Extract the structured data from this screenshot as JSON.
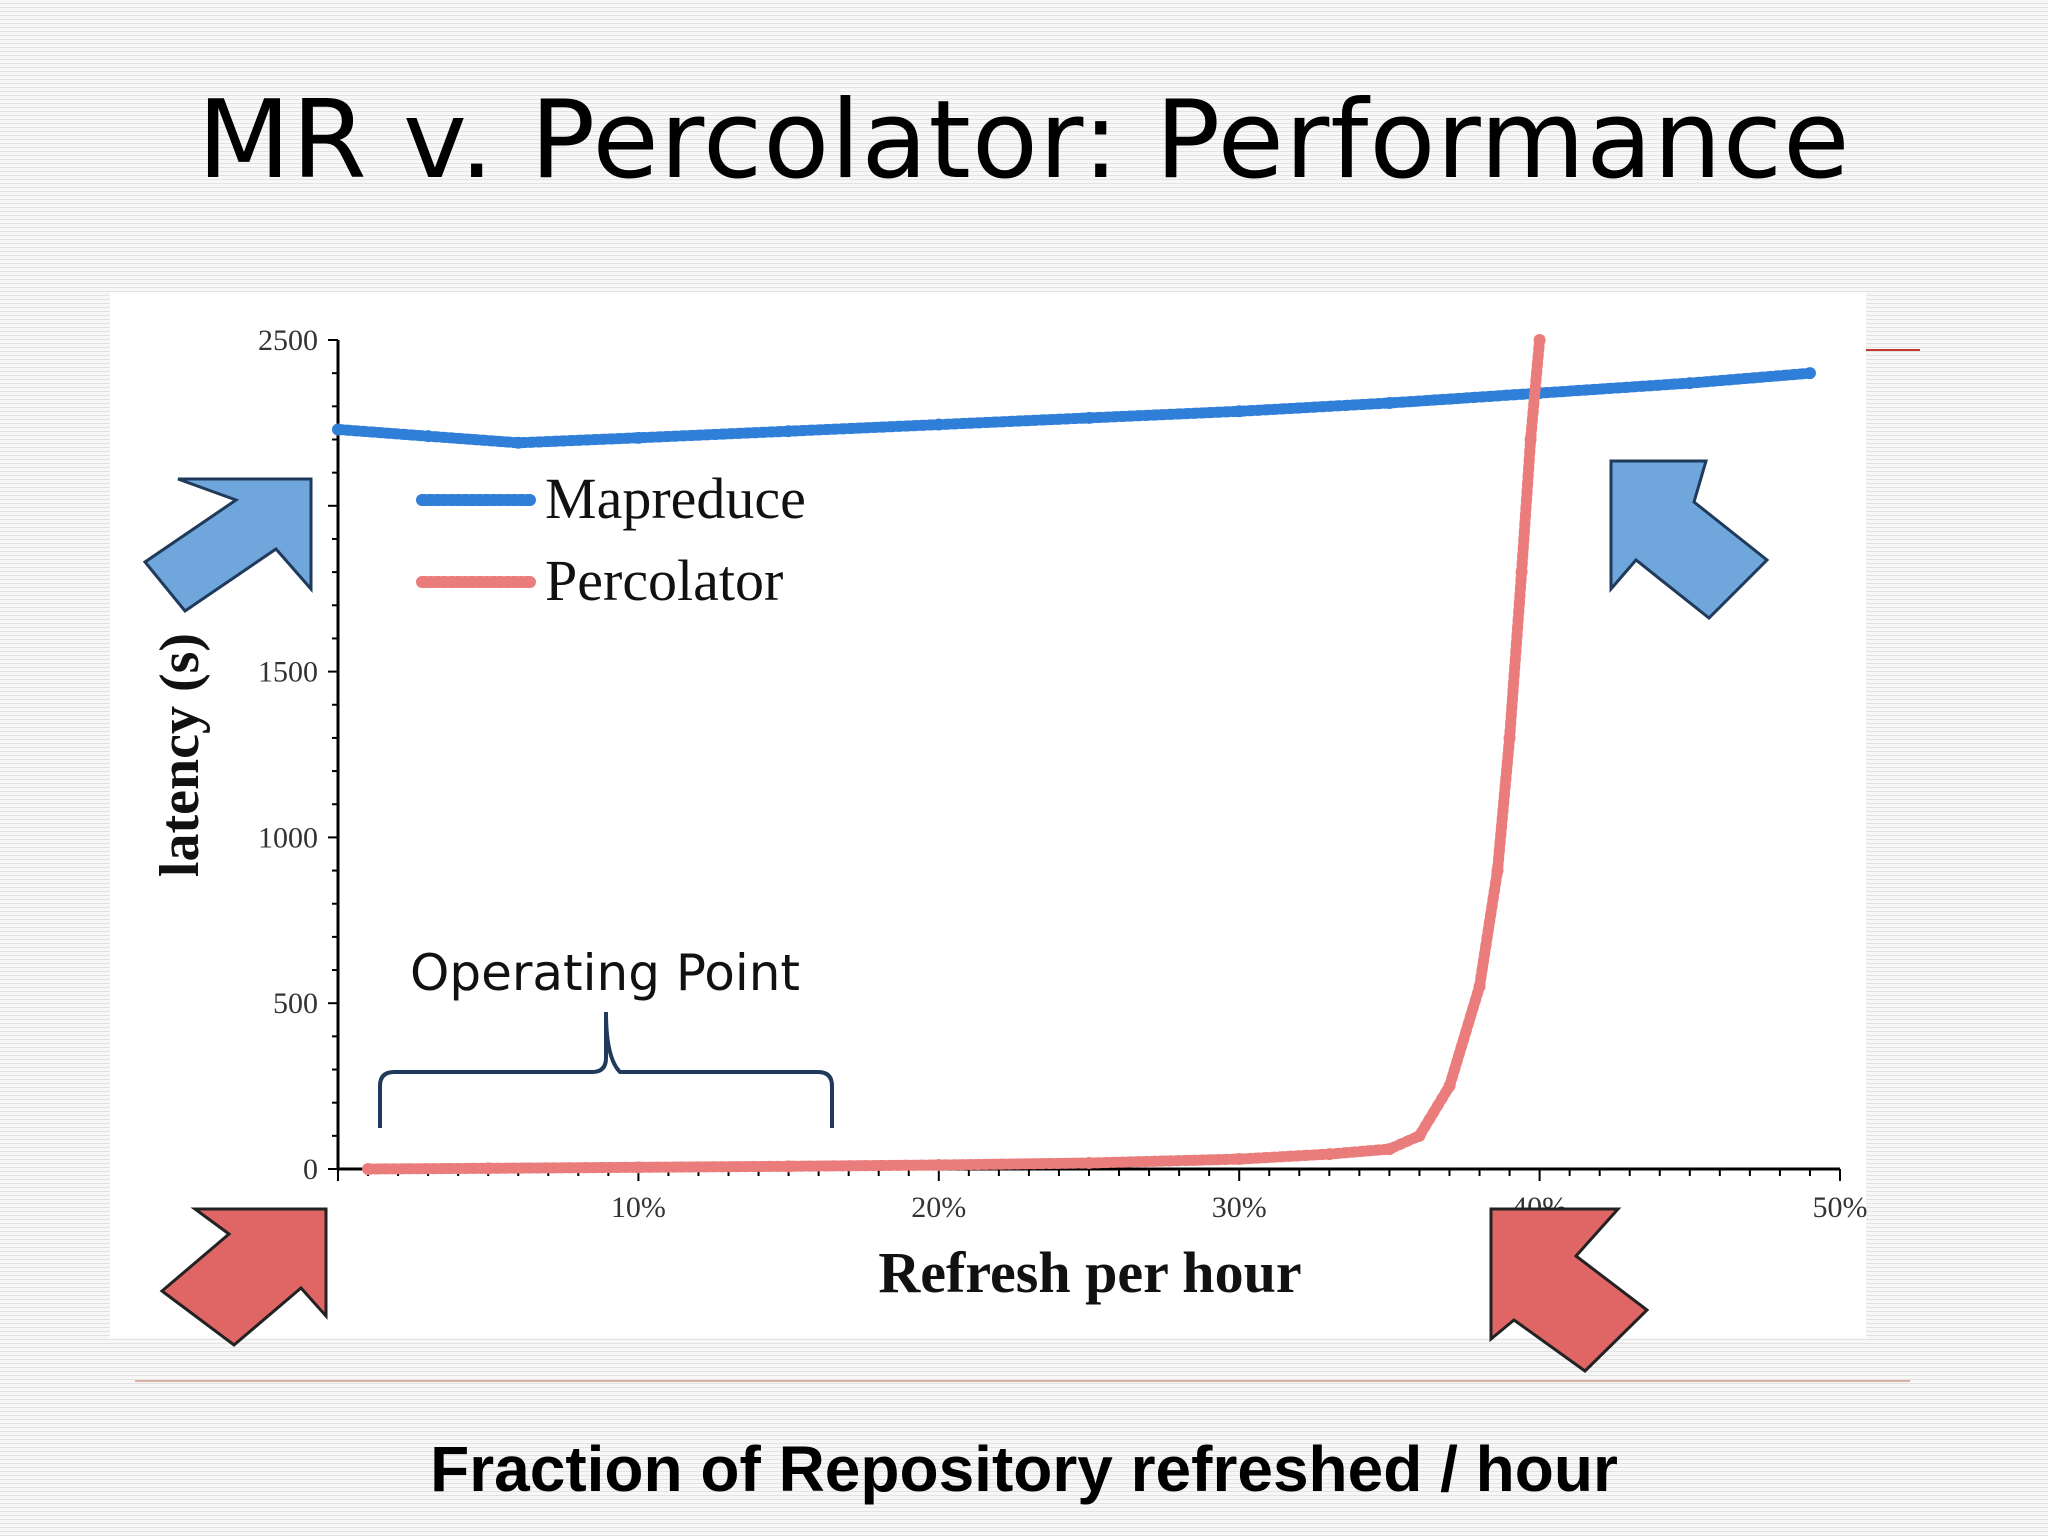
{
  "slide": {
    "title": "MR v. Percolator: Performance",
    "caption": "Fraction of Repository refreshed / hour",
    "annotation": "Operating Point"
  },
  "colors": {
    "mapreduce": "#2f7fd8",
    "percolator": "#eb7c7c",
    "arrow_blue": "#6fa6dc",
    "arrow_red": "#e06666",
    "brace": "#1f3a5a"
  },
  "chart_data": {
    "type": "line",
    "xlabel": "Refresh per hour",
    "ylabel": "latency (s)",
    "xlim": [
      0,
      50
    ],
    "ylim": [
      0,
      2500
    ],
    "x_ticks": [
      {
        "value": 10,
        "label": "10%"
      },
      {
        "value": 20,
        "label": "20%"
      },
      {
        "value": 30,
        "label": "30%"
      },
      {
        "value": 40,
        "label": "40%"
      },
      {
        "value": 50,
        "label": "50%"
      }
    ],
    "y_ticks": [
      {
        "value": 0,
        "label": "0"
      },
      {
        "value": 500,
        "label": "500"
      },
      {
        "value": 1000,
        "label": "1000"
      },
      {
        "value": 1500,
        "label": "1500"
      },
      {
        "value": 2500,
        "label": "2500"
      }
    ],
    "legend_position": "top-left",
    "series": [
      {
        "name": "Mapreduce",
        "x": [
          0,
          3,
          6,
          10,
          15,
          20,
          25,
          30,
          35,
          40,
          45,
          49
        ],
        "y": [
          2230,
          2210,
          2190,
          2205,
          2225,
          2245,
          2265,
          2285,
          2310,
          2340,
          2370,
          2400
        ]
      },
      {
        "name": "Percolator",
        "x": [
          1,
          5,
          10,
          15,
          20,
          25,
          30,
          33,
          35,
          36,
          37,
          38,
          38.6,
          39,
          39.4,
          39.7,
          40
        ],
        "y": [
          0,
          2,
          5,
          8,
          12,
          18,
          30,
          45,
          60,
          100,
          250,
          550,
          900,
          1300,
          1800,
          2200,
          2500
        ]
      }
    ]
  }
}
